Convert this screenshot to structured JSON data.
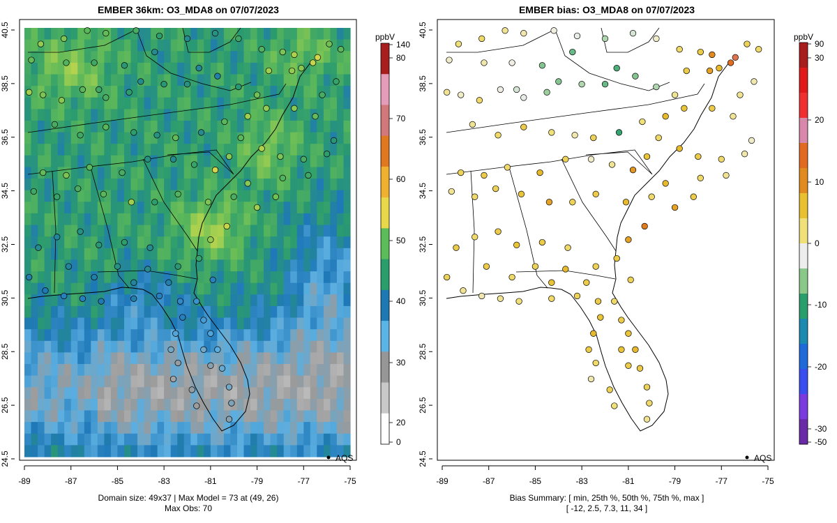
{
  "left_panel": {
    "title": "EMBER 36km: O3_MDA8 on 07/07/2023",
    "legend_label": "AQS",
    "footer_line1": "Domain size: 49x37 | Max Model = 73 at (49, 26)",
    "footer_line2": "Max Obs: 70",
    "colorbar": {
      "unit": "ppbV",
      "ticks": [
        "140",
        "80",
        "70",
        "60",
        "50",
        "40",
        "30",
        "20",
        "0"
      ],
      "colors": [
        "#ffffff",
        "#c8c8c8",
        "#969696",
        "#5ab4e6",
        "#1e78b4",
        "#2a9e6a",
        "#5bbc5a",
        "#e8d84a",
        "#f0b030",
        "#e07820",
        "#d2787c",
        "#e49cb8",
        "#a81e1e"
      ]
    }
  },
  "right_panel": {
    "title": "EMBER bias: O3_MDA8 on 07/07/2023",
    "legend_label": "AQS",
    "footer_line1": "Bias Summary: [ min, 25th %, 50th %, 75th %, max ]",
    "footer_line2": "[ -12,   2.5,   7.3,   11,   34 ]",
    "colorbar": {
      "unit": "ppbV",
      "ticks": [
        "90",
        "30",
        "20",
        "10",
        "0",
        "-10",
        "-20",
        "-30",
        "-50"
      ],
      "colors": [
        "#6a2aa8",
        "#7a3ae0",
        "#3a4ef0",
        "#1e6ad8",
        "#1a8ab0",
        "#2a9e6a",
        "#8ac88a",
        "#ededed",
        "#f0e07a",
        "#e8c030",
        "#e08a20",
        "#e06a20",
        "#d888a8",
        "#f03030",
        "#e01a1a",
        "#a81e1e"
      ]
    }
  },
  "axes": {
    "x_ticks": [
      "-89",
      "-87",
      "-85",
      "-83",
      "-81",
      "-79",
      "-77",
      "-75"
    ],
    "y_ticks": [
      "40.5",
      "38.5",
      "36.5",
      "34.5",
      "32.5",
      "30.5",
      "28.5",
      "26.5",
      "24.5"
    ],
    "xlim": [
      -89.2,
      -74.8
    ],
    "ylim": [
      24.5,
      40.6
    ]
  },
  "stations_note": "approximate station markers",
  "stations": [
    [
      -88.8,
      38.1,
      58,
      6
    ],
    [
      -88.2,
      38.0,
      55,
      4
    ],
    [
      -87.4,
      37.8,
      56,
      8
    ],
    [
      -86.5,
      38.2,
      52,
      3
    ],
    [
      -85.8,
      38.2,
      49,
      1
    ],
    [
      -85.5,
      37.9,
      50,
      2
    ],
    [
      -84.5,
      38.1,
      47,
      -2
    ],
    [
      -84.0,
      38.5,
      44,
      -3
    ],
    [
      -83.0,
      38.4,
      46,
      -1
    ],
    [
      -82.0,
      38.4,
      45,
      -4
    ],
    [
      -81.5,
      39.0,
      43,
      -5
    ],
    [
      -80.7,
      38.7,
      42,
      -3
    ],
    [
      -79.8,
      38.3,
      46,
      -1
    ],
    [
      -79.0,
      38.0,
      54,
      6
    ],
    [
      -78.5,
      38.9,
      58,
      10
    ],
    [
      -77.5,
      38.9,
      57,
      14
    ],
    [
      -77.1,
      39.0,
      56,
      12
    ],
    [
      -76.6,
      39.2,
      61,
      20
    ],
    [
      -76.4,
      39.4,
      62,
      22
    ],
    [
      -77.4,
      39.5,
      59,
      16
    ],
    [
      -77.9,
      39.6,
      55,
      10
    ],
    [
      -78.8,
      39.7,
      51,
      8
    ],
    [
      -79.8,
      40.1,
      49,
      4
    ],
    [
      -80.8,
      40.3,
      45,
      1
    ],
    [
      -82.0,
      40.1,
      44,
      -1
    ],
    [
      -83.2,
      40.2,
      47,
      2
    ],
    [
      -84.2,
      40.4,
      50,
      3
    ],
    [
      -85.5,
      40.3,
      53,
      5
    ],
    [
      -86.3,
      40.4,
      52,
      6
    ],
    [
      -87.3,
      40.1,
      55,
      8
    ],
    [
      -88.3,
      39.9,
      57,
      7
    ],
    [
      -88.7,
      39.3,
      53,
      4
    ],
    [
      -87.2,
      39.2,
      51,
      5
    ],
    [
      -86.0,
      39.2,
      49,
      3
    ],
    [
      -84.7,
      39.1,
      46,
      -3
    ],
    [
      -83.4,
      39.6,
      44,
      -4
    ],
    [
      -87.7,
      36.9,
      50,
      6
    ],
    [
      -86.6,
      36.5,
      49,
      8
    ],
    [
      -85.5,
      36.8,
      52,
      10
    ],
    [
      -84.3,
      36.6,
      47,
      7
    ],
    [
      -83.3,
      36.5,
      45,
      5
    ],
    [
      -82.5,
      36.4,
      53,
      9
    ],
    [
      -81.4,
      36.6,
      44,
      -6
    ],
    [
      -80.4,
      37.0,
      52,
      7
    ],
    [
      -79.4,
      37.2,
      58,
      12
    ],
    [
      -78.6,
      37.5,
      57,
      11
    ],
    [
      -77.4,
      37.5,
      56,
      10
    ],
    [
      -76.5,
      37.2,
      53,
      6
    ],
    [
      -79.7,
      36.4,
      52,
      8
    ],
    [
      -78.8,
      36.0,
      59,
      12
    ],
    [
      -78.0,
      35.7,
      55,
      10
    ],
    [
      -77.0,
      35.6,
      50,
      8
    ],
    [
      -80.8,
      35.2,
      62,
      15
    ],
    [
      -80.2,
      35.7,
      56,
      11
    ],
    [
      -81.7,
      35.4,
      48,
      6
    ],
    [
      -82.6,
      35.6,
      44,
      4
    ],
    [
      -83.7,
      35.6,
      45,
      9
    ],
    [
      -84.8,
      35.1,
      50,
      12
    ],
    [
      -86.2,
      35.3,
      52,
      8
    ],
    [
      -87.2,
      35.0,
      55,
      10
    ],
    [
      -88.2,
      35.1,
      53,
      9
    ],
    [
      -88.6,
      34.4,
      49,
      6
    ],
    [
      -87.6,
      34.2,
      48,
      8
    ],
    [
      -86.7,
      34.5,
      50,
      9
    ],
    [
      -85.6,
      34.3,
      52,
      11
    ],
    [
      -84.4,
      34.0,
      58,
      14
    ],
    [
      -83.4,
      34.0,
      47,
      9
    ],
    [
      -82.4,
      34.3,
      51,
      10
    ],
    [
      -81.1,
      34.0,
      55,
      12
    ],
    [
      -80.0,
      34.2,
      50,
      8
    ],
    [
      -79.0,
      33.8,
      58,
      14
    ],
    [
      -80.3,
      33.1,
      61,
      18
    ],
    [
      -81.0,
      32.6,
      57,
      14
    ],
    [
      -81.5,
      31.9,
      48,
      10
    ],
    [
      -82.4,
      31.6,
      46,
      9
    ],
    [
      -83.6,
      32.3,
      44,
      8
    ],
    [
      -84.7,
      32.5,
      47,
      10
    ],
    [
      -85.8,
      32.4,
      46,
      11
    ],
    [
      -86.6,
      32.9,
      45,
      10
    ],
    [
      -87.6,
      32.7,
      43,
      8
    ],
    [
      -88.4,
      32.3,
      44,
      10
    ],
    [
      -88.8,
      31.2,
      42,
      9
    ],
    [
      -88.1,
      30.7,
      41,
      6
    ],
    [
      -87.3,
      30.5,
      40,
      5
    ],
    [
      -86.5,
      30.4,
      40,
      6
    ],
    [
      -85.7,
      30.3,
      41,
      7
    ],
    [
      -84.3,
      30.4,
      42,
      8
    ],
    [
      -83.2,
      30.5,
      40,
      9
    ],
    [
      -82.3,
      30.3,
      39,
      10
    ],
    [
      -81.6,
      30.3,
      38,
      8
    ],
    [
      -81.3,
      29.6,
      37,
      10
    ],
    [
      -81.0,
      29.1,
      36,
      11
    ],
    [
      -80.7,
      28.5,
      35,
      12
    ],
    [
      -80.5,
      27.8,
      34,
      10
    ],
    [
      -80.2,
      27.1,
      33,
      9
    ],
    [
      -80.1,
      26.5,
      32,
      8
    ],
    [
      -80.2,
      25.9,
      31,
      6
    ],
    [
      -82.2,
      29.7,
      40,
      11
    ],
    [
      -82.5,
      29.1,
      36,
      12
    ],
    [
      -82.7,
      28.5,
      33,
      10
    ],
    [
      -82.4,
      28.0,
      30,
      8
    ],
    [
      -82.6,
      27.4,
      28,
      5
    ],
    [
      -81.8,
      27.0,
      30,
      9
    ],
    [
      -81.6,
      26.4,
      29,
      7
    ],
    [
      -81.3,
      28.5,
      33,
      11
    ],
    [
      -81.0,
      27.9,
      31,
      10
    ],
    [
      -83.7,
      31.5,
      44,
      12
    ],
    [
      -82.8,
      31.0,
      42,
      10
    ],
    [
      -80.9,
      31.1,
      40,
      9
    ],
    [
      -86.0,
      31.2,
      42,
      8
    ],
    [
      -87.1,
      31.6,
      43,
      10
    ],
    [
      -85.0,
      31.6,
      45,
      9
    ],
    [
      -84.3,
      31.0,
      43,
      11
    ],
    [
      -79.4,
      34.7,
      56,
      12
    ],
    [
      -78.2,
      34.2,
      54,
      10
    ],
    [
      -77.9,
      34.9,
      51,
      8
    ],
    [
      -76.8,
      35.0,
      49,
      6
    ],
    [
      -76.0,
      35.8,
      47,
      5
    ],
    [
      -75.7,
      36.3,
      46,
      4
    ],
    [
      -76.2,
      38.0,
      50,
      6
    ],
    [
      -75.6,
      38.5,
      48,
      5
    ],
    [
      -75.4,
      39.7,
      52,
      8
    ],
    [
      -75.9,
      39.9,
      54,
      9
    ]
  ]
}
